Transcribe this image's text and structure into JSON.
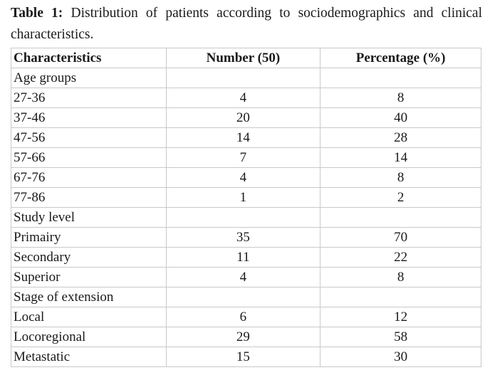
{
  "caption": {
    "label": "Table 1:",
    "text": "Distribution of patients according to sociodemographics and clinical characteristics."
  },
  "table": {
    "headers": {
      "characteristics": "Characteristics",
      "number": "Number (50)",
      "percentage": "Percentage (%)"
    },
    "sections": [
      {
        "title": "Age groups",
        "rows": [
          {
            "label": "27-36",
            "number": "4",
            "percentage": "8"
          },
          {
            "label": "37-46",
            "number": "20",
            "percentage": "40"
          },
          {
            "label": "47-56",
            "number": "14",
            "percentage": "28"
          },
          {
            "label": "57-66",
            "number": "7",
            "percentage": "14"
          },
          {
            "label": "67-76",
            "number": "4",
            "percentage": "8"
          },
          {
            "label": "77-86",
            "number": "1",
            "percentage": "2"
          }
        ]
      },
      {
        "title": "Study level",
        "rows": [
          {
            "label": "Primairy",
            "number": "35",
            "percentage": "70"
          },
          {
            "label": "Secondary",
            "number": "11",
            "percentage": "22"
          },
          {
            "label": "Superior",
            "number": "4",
            "percentage": "8"
          }
        ]
      },
      {
        "title": "Stage of extension",
        "rows": [
          {
            "label": "Local",
            "number": "6",
            "percentage": "12"
          },
          {
            "label": "Locoregional",
            "number": "29",
            "percentage": "58"
          },
          {
            "label": "Metastatic",
            "number": "15",
            "percentage": "30"
          }
        ]
      }
    ]
  }
}
